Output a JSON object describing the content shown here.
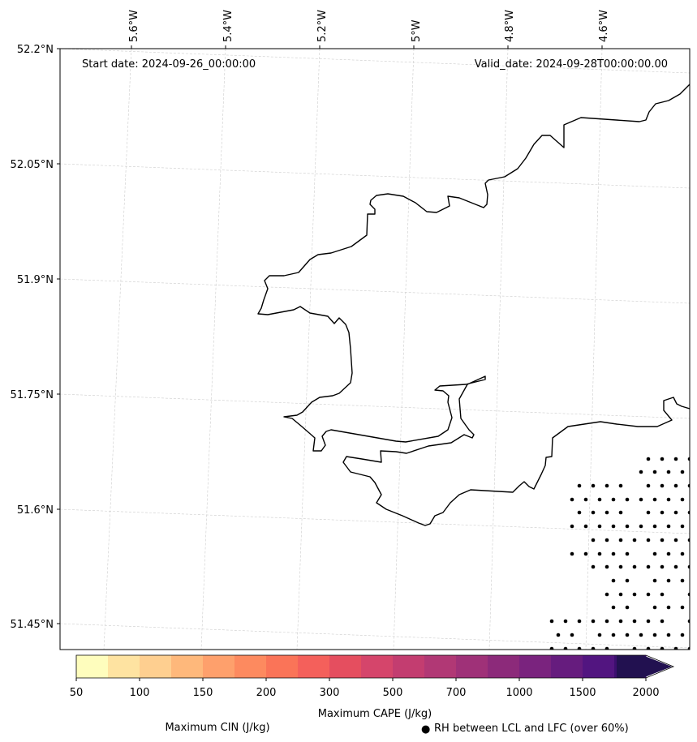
{
  "map": {
    "start_date": "Start date: 2024-09-26_00:00:00",
    "valid_date": "Valid_date: 2024-09-28T00:00:00.00",
    "lon_labels": [
      "5.6°W",
      "5.4°W",
      "5.2°W",
      "5°W",
      "4.8°W",
      "4.6°W"
    ],
    "lat_labels": [
      "52.2°N",
      "52.05°N",
      "51.9°N",
      "51.75°N",
      "51.6°N",
      "51.45°N"
    ],
    "coastline_color": "#000000",
    "gridline_color": "#cccccc",
    "stipple_meaning": "RH between LCL and LFC (over 60%)"
  },
  "colorbar": {
    "title": "Maximum CAPE (J/kg)",
    "tick_labels": [
      "50",
      "100",
      "150",
      "200",
      "300",
      "500",
      "700",
      "1000",
      "1500",
      "2000"
    ],
    "levels": [
      50,
      75,
      100,
      125,
      150,
      175,
      200,
      250,
      300,
      400,
      500,
      600,
      700,
      850,
      1000,
      1250,
      1500,
      1750,
      2000
    ],
    "colors": [
      "#fefdbd",
      "#fee3a1",
      "#fecf90",
      "#feb87b",
      "#fea06c",
      "#fd8a5f",
      "#fa7458",
      "#f4605b",
      "#e54e5f",
      "#d5456b",
      "#c33d70",
      "#b13875",
      "#9f3178",
      "#8c2a7a",
      "#7a237e",
      "#661c7e",
      "#521580",
      "#3c0f6f",
      "#221150"
    ],
    "extend": "max"
  },
  "legend": {
    "cin_label": "Maximum CIN (J/kg)",
    "cin_color": "#ff0000",
    "rh_label": "RH between LCL and LFC (over 60%)",
    "rh_symbol": "●"
  }
}
